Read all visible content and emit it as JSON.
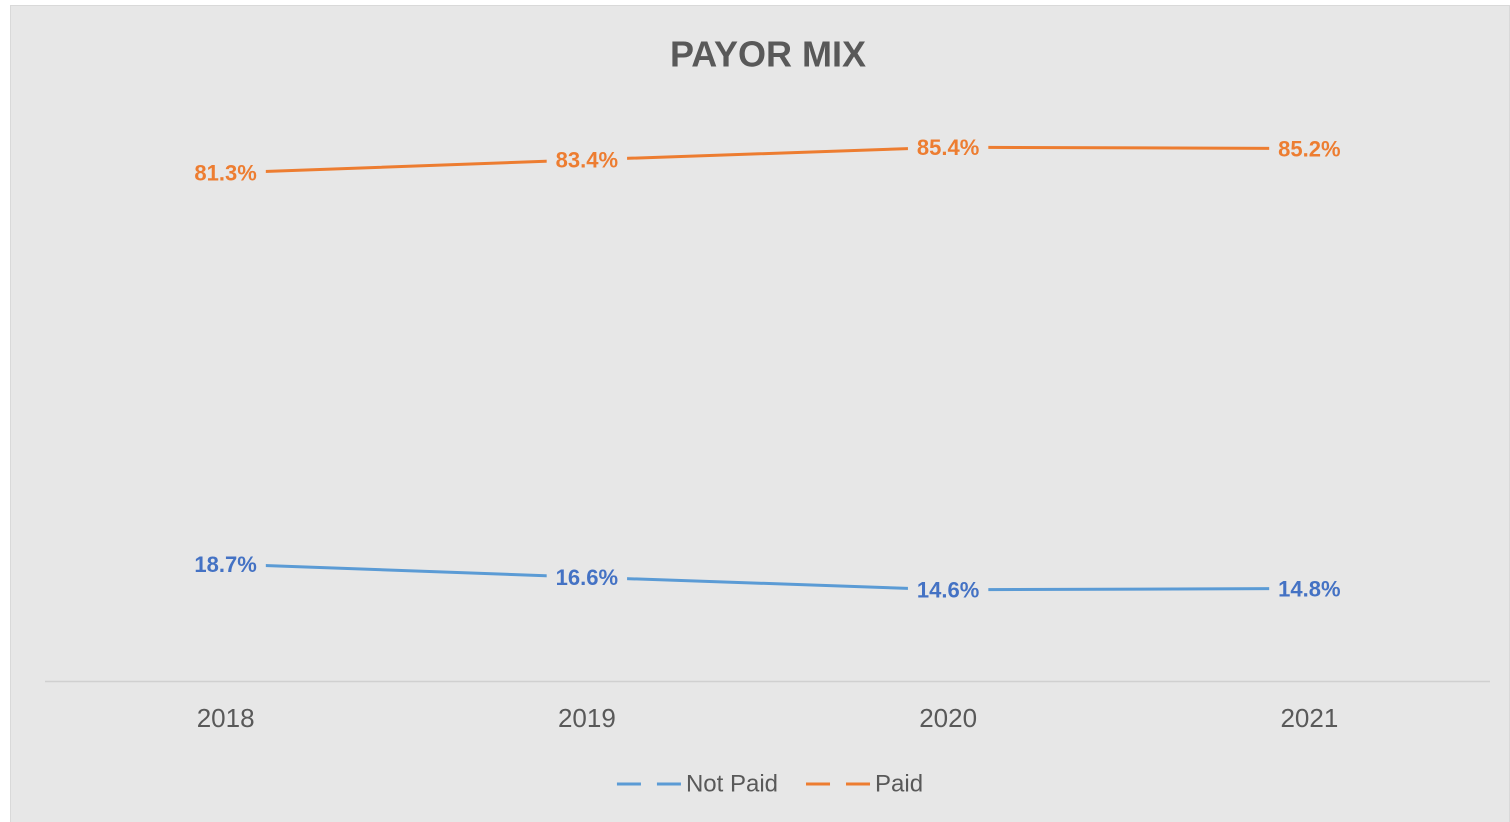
{
  "chart_data": {
    "type": "line",
    "title": "PAYOR MIX",
    "categories": [
      "2018",
      "2019",
      "2020",
      "2021"
    ],
    "series": [
      {
        "name": "Not Paid",
        "color": "#5b9bd5",
        "label_color": "#4472c4",
        "values": [
          18.7,
          16.6,
          14.6,
          14.8
        ],
        "value_labels": [
          "18.7%",
          "16.6%",
          "14.6%",
          "14.8%"
        ]
      },
      {
        "name": "Paid",
        "color": "#ed7d31",
        "label_color": "#ed7d31",
        "values": [
          81.3,
          83.4,
          85.4,
          85.2
        ],
        "value_labels": [
          "81.3%",
          "83.4%",
          "85.4%",
          "85.2%"
        ]
      }
    ],
    "ylim": [
      0,
      100
    ],
    "grid": false,
    "legend": "bottom"
  }
}
